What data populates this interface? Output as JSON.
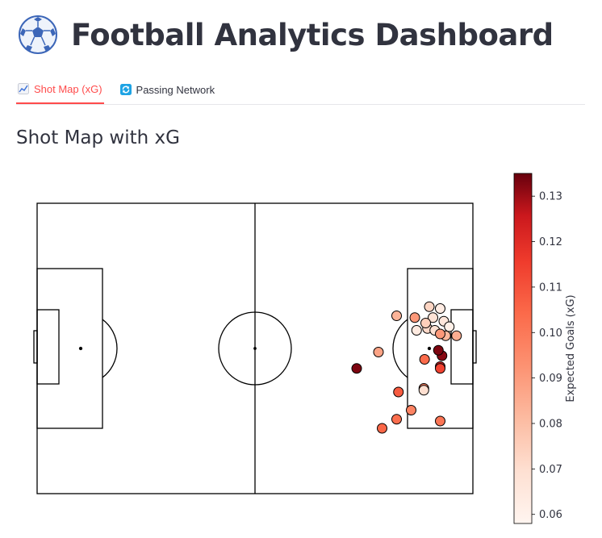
{
  "header": {
    "title": "Football Analytics Dashboard",
    "icon": "soccer-ball-icon"
  },
  "tabs": [
    {
      "label": "Shot Map (xG)",
      "icon": "chart-line-icon",
      "active": true
    },
    {
      "label": "Passing Network",
      "icon": "refresh-icon",
      "active": false
    }
  ],
  "section": {
    "title": "Shot Map with xG"
  },
  "colors": {
    "accent": "#ff4b4b",
    "text": "#31333f",
    "cmap_low": "#fff5f0",
    "cmap_high": "#67000d"
  },
  "chart_data": {
    "type": "scatter",
    "pitch": {
      "length": 120,
      "width": 80
    },
    "colorbar": {
      "label": "Expected Goals (xG)",
      "range": [
        0.058,
        0.135
      ],
      "ticks": [
        "0.06",
        "0.07",
        "0.08",
        "0.09",
        "0.10",
        "0.11",
        "0.12",
        "0.13"
      ],
      "tick_values": [
        0.06,
        0.07,
        0.08,
        0.09,
        0.1,
        0.11,
        0.12,
        0.13
      ]
    },
    "shots": [
      {
        "x": 95.0,
        "y": 62.0,
        "xg": 0.105
      },
      {
        "x": 99.5,
        "y": 52.0,
        "xg": 0.108
      },
      {
        "x": 106.7,
        "y": 43.0,
        "xg": 0.104
      },
      {
        "x": 111.5,
        "y": 42.0,
        "xg": 0.132
      },
      {
        "x": 108.0,
        "y": 28.5,
        "xg": 0.073
      },
      {
        "x": 109.0,
        "y": 31.5,
        "xg": 0.068
      },
      {
        "x": 111.0,
        "y": 29.0,
        "xg": 0.063
      },
      {
        "x": 112.0,
        "y": 32.5,
        "xg": 0.066
      },
      {
        "x": 113.5,
        "y": 34.0,
        "xg": 0.061
      },
      {
        "x": 107.5,
        "y": 34.5,
        "xg": 0.072
      },
      {
        "x": 107.0,
        "y": 33.0,
        "xg": 0.075
      },
      {
        "x": 109.5,
        "y": 35.0,
        "xg": 0.069
      },
      {
        "x": 112.5,
        "y": 36.5,
        "xg": 0.082
      },
      {
        "x": 115.5,
        "y": 36.5,
        "xg": 0.085
      },
      {
        "x": 104.5,
        "y": 35.0,
        "xg": 0.064
      },
      {
        "x": 99.0,
        "y": 31.0,
        "xg": 0.083
      },
      {
        "x": 104.0,
        "y": 31.5,
        "xg": 0.091
      },
      {
        "x": 94.0,
        "y": 41.0,
        "xg": 0.088
      },
      {
        "x": 110.5,
        "y": 40.5,
        "xg": 0.133
      },
      {
        "x": 111.0,
        "y": 45.0,
        "xg": 0.123
      },
      {
        "x": 106.5,
        "y": 51.0,
        "xg": 0.098
      },
      {
        "x": 103.0,
        "y": 57.0,
        "xg": 0.097
      },
      {
        "x": 88.0,
        "y": 45.5,
        "xg": 0.133
      },
      {
        "x": 111.0,
        "y": 45.5,
        "xg": 0.114
      },
      {
        "x": 111.0,
        "y": 60.0,
        "xg": 0.101
      },
      {
        "x": 99.0,
        "y": 59.5,
        "xg": 0.103
      },
      {
        "x": 111.0,
        "y": 36.0,
        "xg": 0.091
      },
      {
        "x": 106.5,
        "y": 51.5,
        "xg": 0.07
      }
    ]
  }
}
